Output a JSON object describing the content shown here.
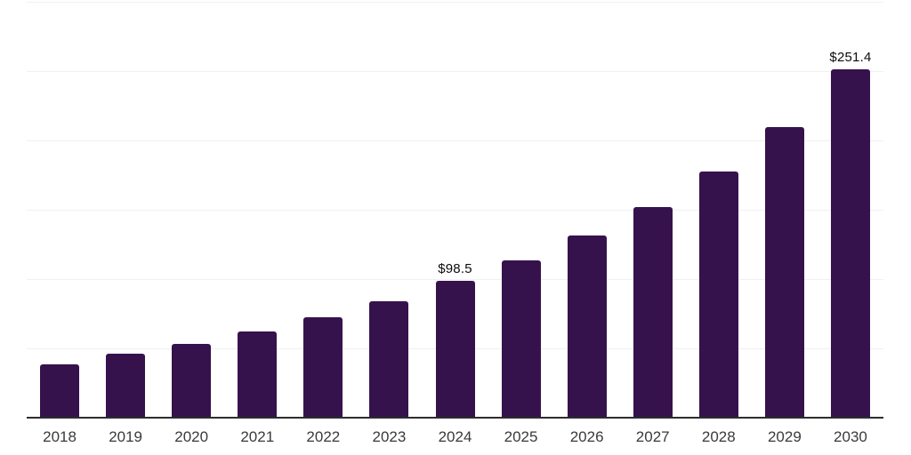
{
  "chart_data": {
    "type": "bar",
    "categories": [
      "2018",
      "2019",
      "2020",
      "2021",
      "2022",
      "2023",
      "2024",
      "2025",
      "2026",
      "2027",
      "2028",
      "2029",
      "2030"
    ],
    "values": [
      38.6,
      45.9,
      53.2,
      62.5,
      72.3,
      84.1,
      98.5,
      113.4,
      131.2,
      151.9,
      177.5,
      209.8,
      251.4
    ],
    "value_labels": {
      "2024": "$98.5",
      "2030": "$251.4"
    },
    "ylim": [
      0,
      300
    ],
    "gridline_values": [
      300,
      250,
      200,
      150,
      100,
      50
    ],
    "grid": "horizontal",
    "y_tick_labels_visible": false,
    "legend_position": "none",
    "colors": {
      "background": "#ffffff",
      "bar": "#36124d",
      "axis_line": "#2d2d2d",
      "gridline": "#f0f0f0",
      "tick_label": "#3a3a3a",
      "annotation": "#0b0b0b"
    }
  }
}
